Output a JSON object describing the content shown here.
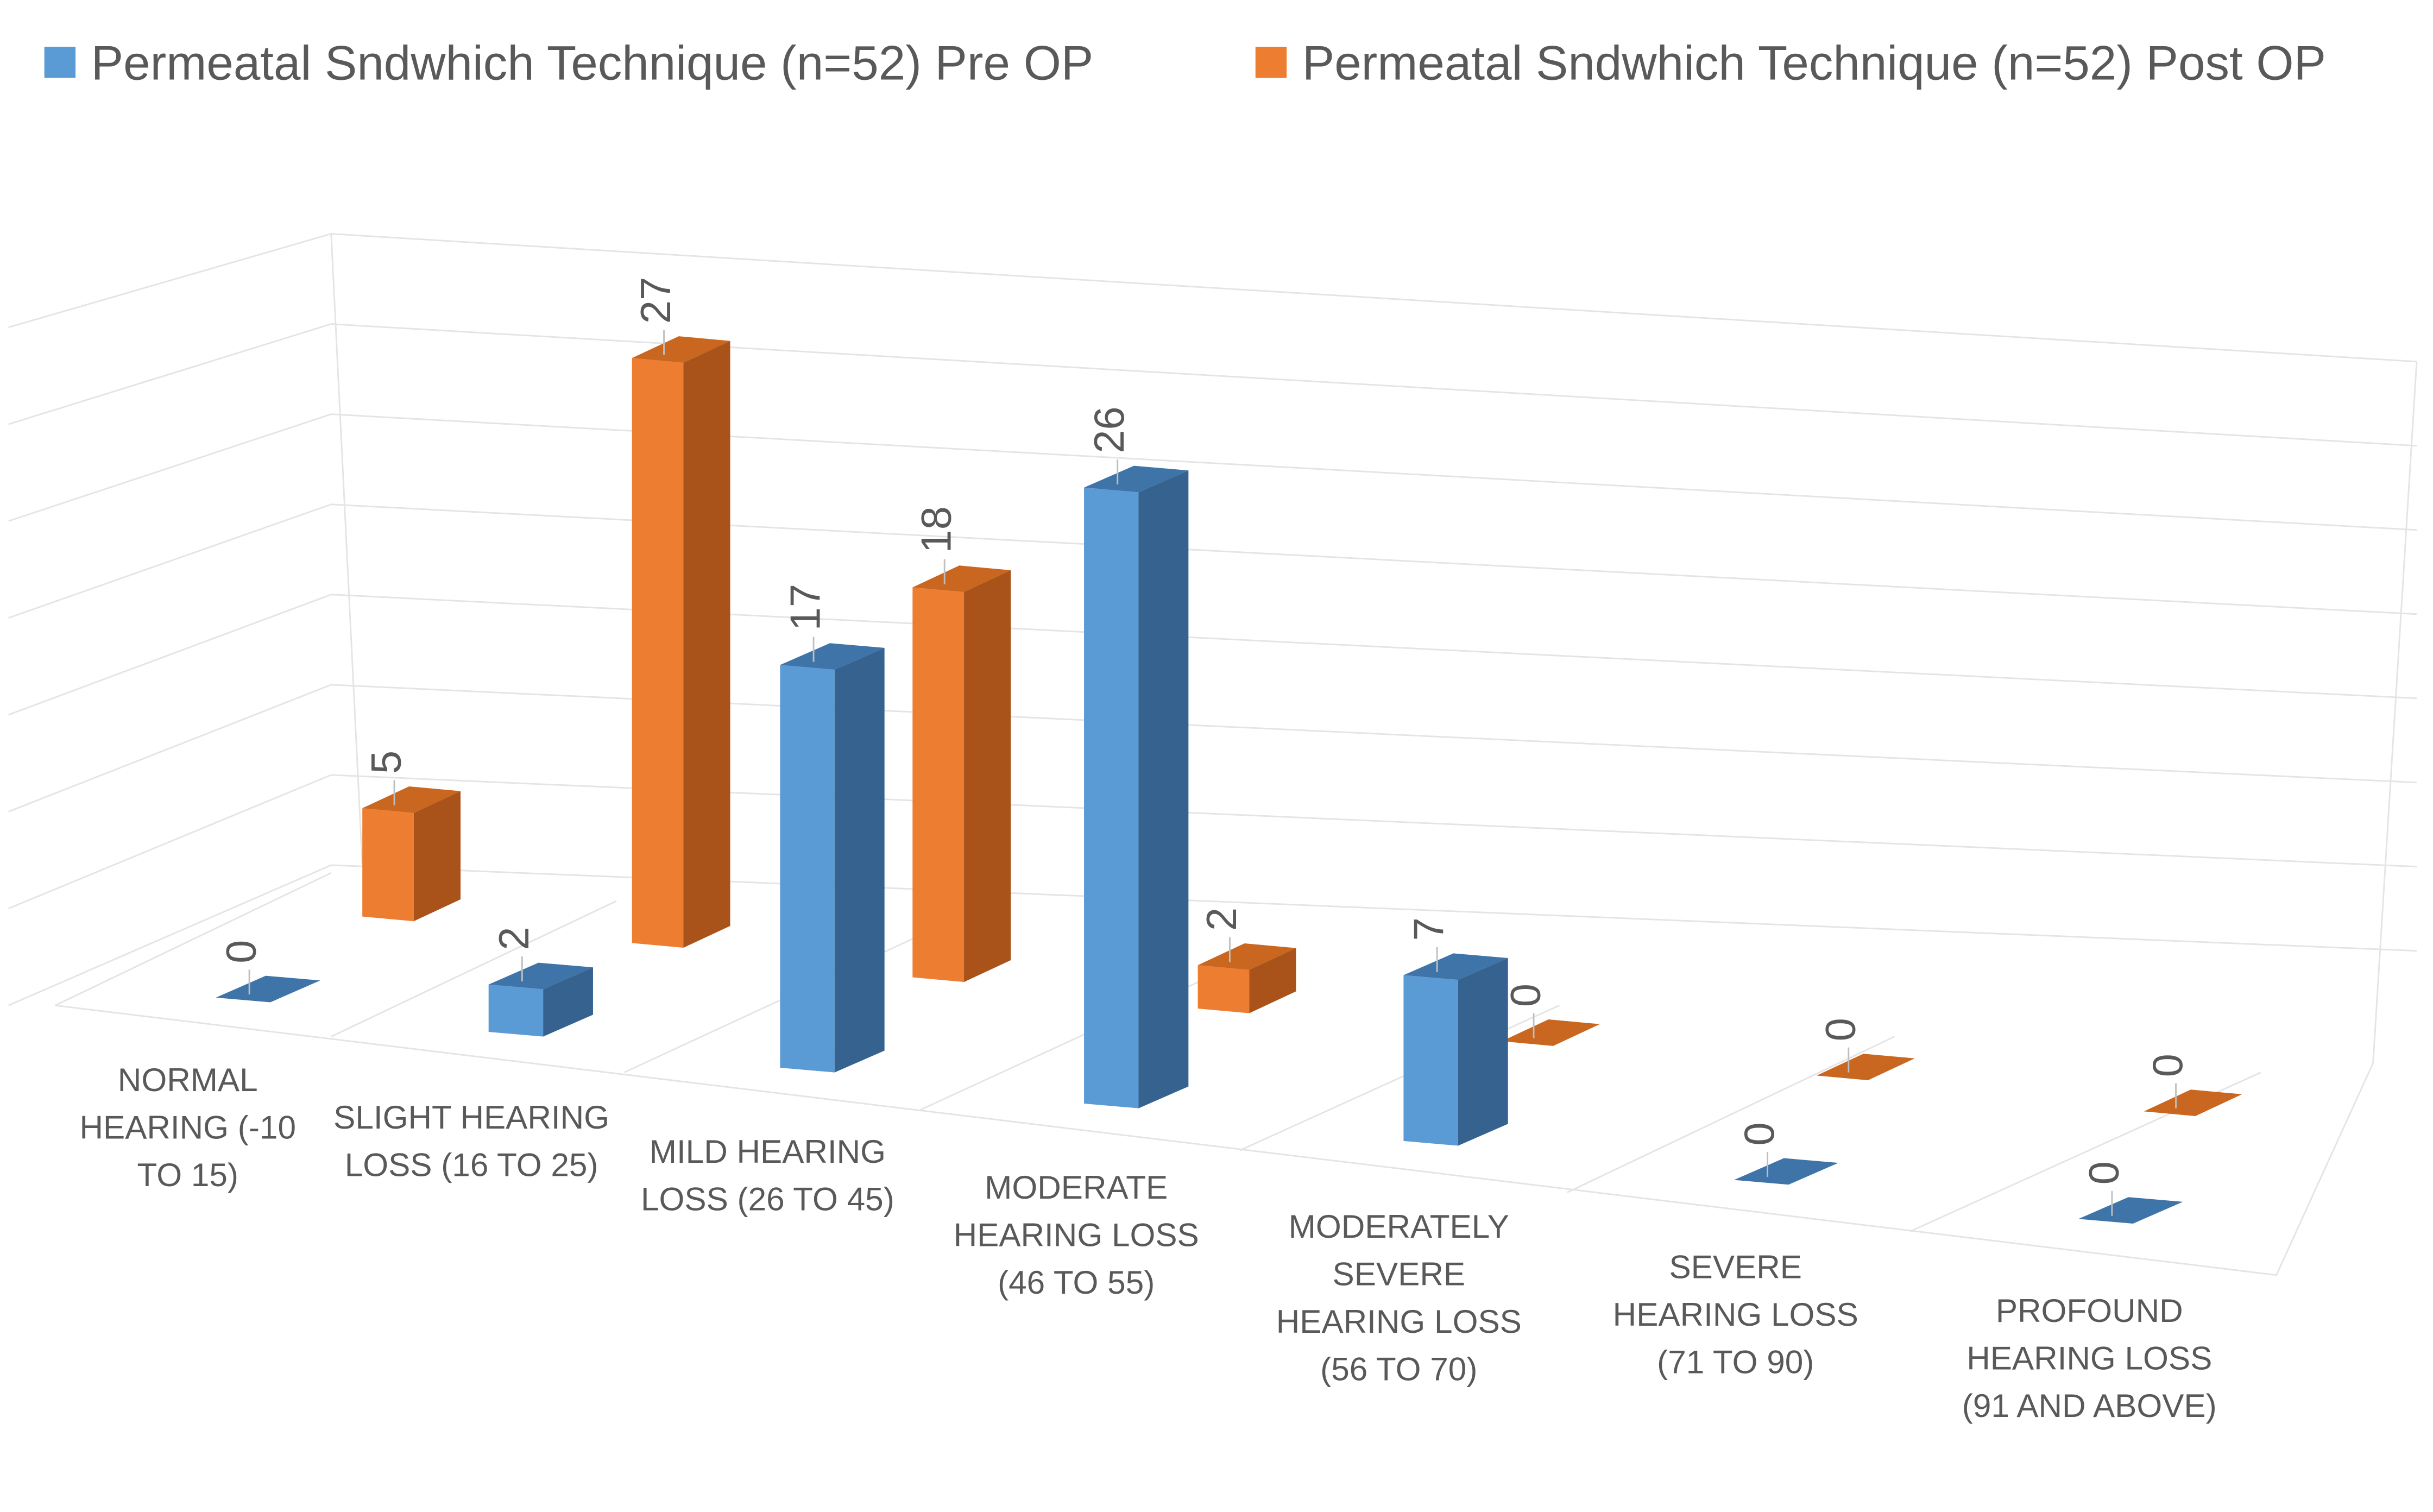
{
  "chart_data": {
    "type": "bar",
    "variant": "3d-clustered-column",
    "categories": [
      "NORMAL HEARING (-10 TO 15)",
      "SLIGHT HEARING LOSS (16 TO 25)",
      "MILD HEARING LOSS (26 TO 45)",
      "MODERATE HEARING LOSS (46 TO 55)",
      "MODERATELY SEVERE HEARING LOSS (56 TO 70)",
      "SEVERE HEARING LOSS (71 TO 90)",
      "PROFOUND HEARING LOSS (91 AND ABOVE)"
    ],
    "category_lines": [
      [
        "NORMAL",
        "HEARING (-10",
        "TO 15)"
      ],
      [
        "SLIGHT HEARING",
        "LOSS (16 TO 25)"
      ],
      [
        "MILD HEARING",
        "LOSS (26 TO 45)"
      ],
      [
        "MODERATE",
        "HEARING LOSS",
        "(46 TO 55)"
      ],
      [
        "MODERATELY",
        "SEVERE",
        "HEARING LOSS",
        "(56 TO 70)"
      ],
      [
        "SEVERE",
        "HEARING LOSS",
        "(71 TO 90)"
      ],
      [
        "PROFOUND",
        "HEARING LOSS",
        "(91 AND ABOVE)"
      ]
    ],
    "series": [
      {
        "name": "Permeatal Sndwhich Technique (n=52) Pre OP",
        "values": [
          0,
          2,
          17,
          26,
          7,
          0,
          0
        ],
        "color": "#5b9bd5"
      },
      {
        "name": "Permeatal Sndwhich Technique (n=52) Post OP",
        "values": [
          5,
          27,
          18,
          2,
          0,
          0,
          0
        ],
        "color": "#ed7d31"
      }
    ],
    "data_labels": true,
    "legend_position": "top",
    "grid": true
  }
}
